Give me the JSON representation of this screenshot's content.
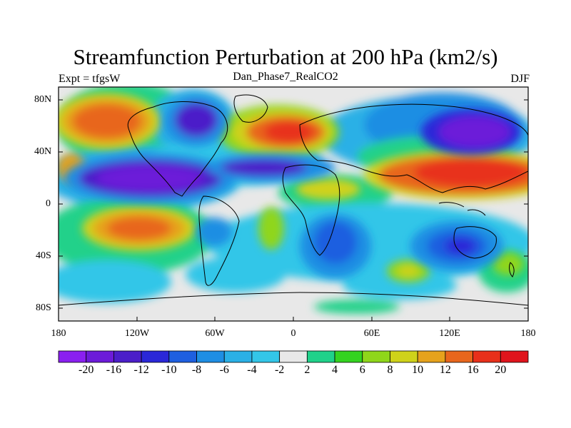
{
  "title": "Streamfunction Perturbation at 200 hPa (km2/s)",
  "left_subtitle": "Expt = tfgsW",
  "center_subtitle": "Dan_Phase7_RealCO2",
  "right_subtitle": "DJF",
  "lat_labels": [
    "80N",
    "40N",
    "0",
    "40S",
    "80S"
  ],
  "lon_labels": [
    "180",
    "120W",
    "60W",
    "0",
    "60E",
    "120E",
    "180"
  ],
  "colorbar": {
    "labels": [
      "-20",
      "-16",
      "-12",
      "-10",
      "-8",
      "-6",
      "-4",
      "-2",
      "2",
      "4",
      "6",
      "8",
      "10",
      "12",
      "16",
      "20"
    ],
    "colors": [
      "#8a1ff0",
      "#6c1bd9",
      "#4b1ec9",
      "#2a27d8",
      "#1e5fe0",
      "#1e8ee3",
      "#2ab0e6",
      "#33c6e8",
      "#e8e8e8",
      "#20d18a",
      "#34d320",
      "#8fd61a",
      "#cfd21a",
      "#e6a21c",
      "#e8661c",
      "#e8301a",
      "#e0141c"
    ]
  }
}
